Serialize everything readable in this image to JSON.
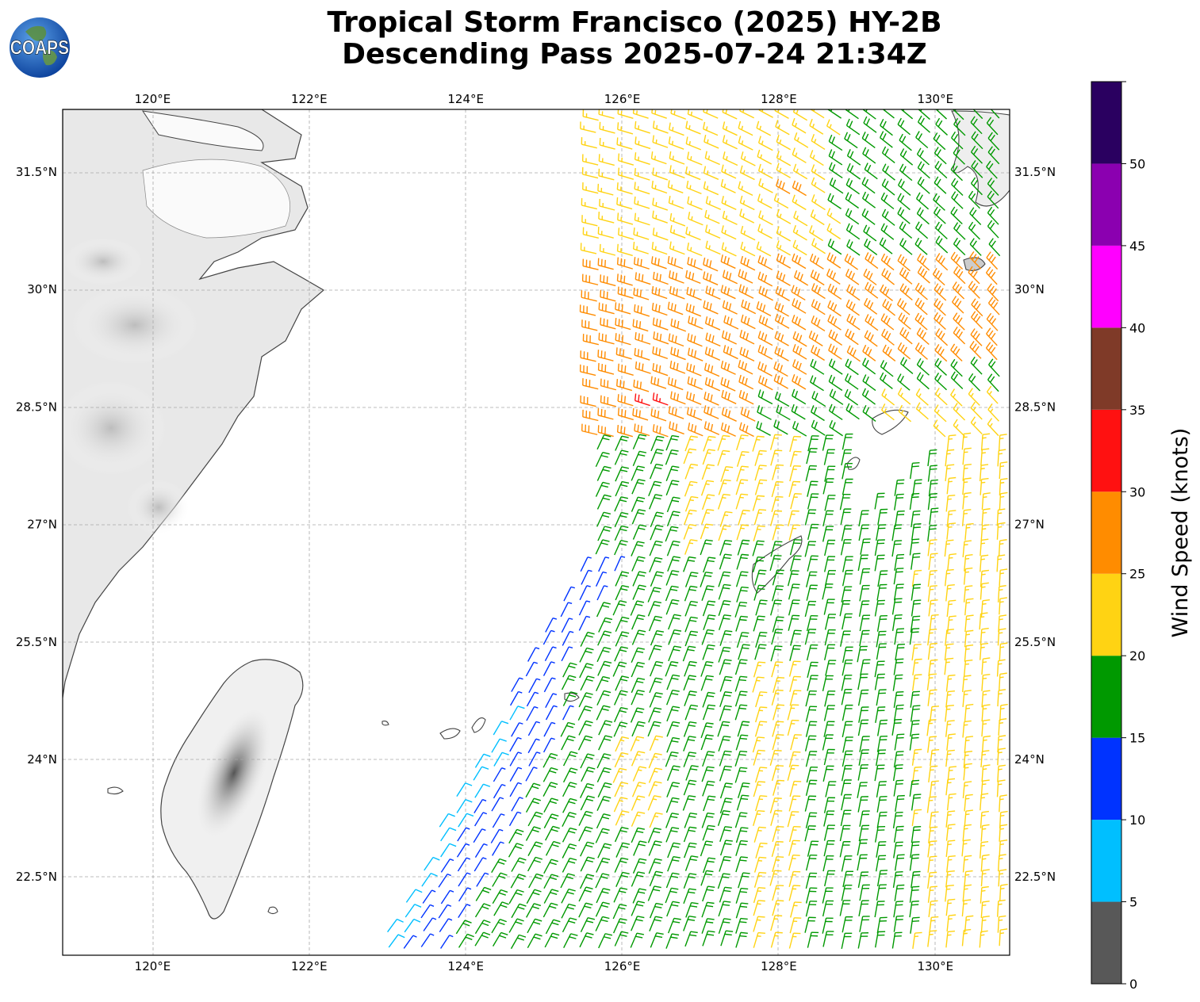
{
  "header": {
    "logo_text": "COAPS",
    "title_line1": "Tropical Storm Francisco (2025) HY-2B",
    "title_line2": "Descending Pass 2025-07-24 21:34Z"
  },
  "map": {
    "lon_labels": [
      "120°E",
      "122°E",
      "124°E",
      "126°E",
      "128°E",
      "130°E"
    ],
    "lat_labels": [
      "31.5°N",
      "30°N",
      "28.5°N",
      "27°N",
      "25.5°N",
      "24°N",
      "22.5°N"
    ],
    "lon_values": [
      120,
      122,
      124,
      126,
      128,
      130
    ],
    "lat_values": [
      31.5,
      30,
      28.5,
      27,
      25.5,
      24,
      22.5
    ],
    "extent": {
      "lon": [
        118.85,
        130.95
      ],
      "lat": [
        21.5,
        32.3
      ]
    },
    "gridlines": true
  },
  "colorbar": {
    "label": "Wind Speed (knots)",
    "ticks": [
      "0",
      "5",
      "10",
      "15",
      "20",
      "25",
      "30",
      "35",
      "40",
      "45",
      "50"
    ],
    "bins": [
      {
        "min": 0,
        "max": 5,
        "color": "#585858"
      },
      {
        "min": 5,
        "max": 10,
        "color": "#00bfff"
      },
      {
        "min": 10,
        "max": 15,
        "color": "#0033ff"
      },
      {
        "min": 15,
        "max": 20,
        "color": "#009900"
      },
      {
        "min": 20,
        "max": 25,
        "color": "#ffd313"
      },
      {
        "min": 25,
        "max": 30,
        "color": "#ff8c00"
      },
      {
        "min": 30,
        "max": 35,
        "color": "#ff1111"
      },
      {
        "min": 35,
        "max": 40,
        "color": "#7f3a28"
      },
      {
        "min": 40,
        "max": 45,
        "color": "#ff00ff"
      },
      {
        "min": 45,
        "max": 50,
        "color": "#8b00b0"
      },
      {
        "min": 50,
        "max": 55,
        "color": "#2a0060"
      }
    ]
  }
}
